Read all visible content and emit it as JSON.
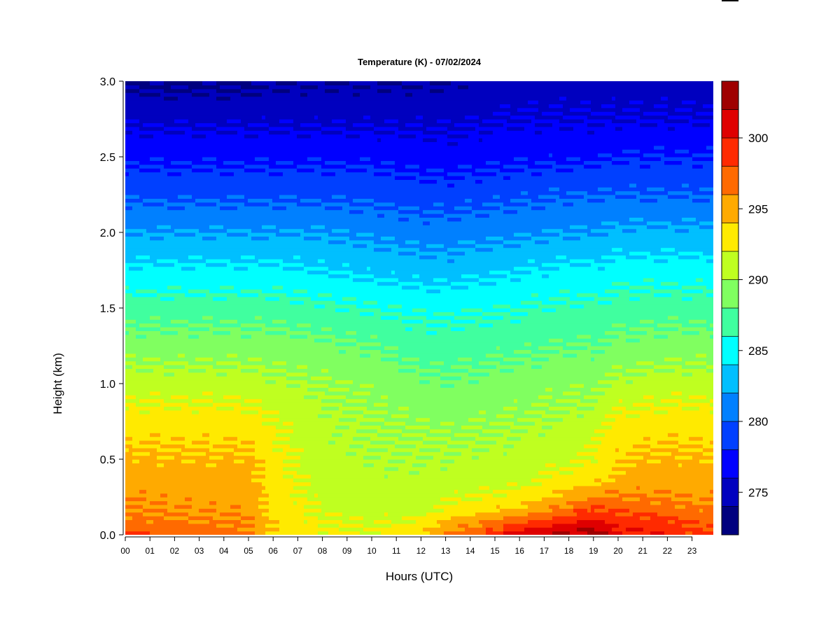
{
  "chart_data": {
    "type": "heatmap",
    "title": "Temperature (K) - 07/02/2024",
    "xlabel": "Hours (UTC)",
    "ylabel": "Height (km)",
    "xlim": [
      0,
      24
    ],
    "ylim": [
      0,
      3
    ],
    "x_ticks": [
      "00",
      "01",
      "02",
      "03",
      "04",
      "05",
      "06",
      "07",
      "08",
      "09",
      "10",
      "11",
      "12",
      "13",
      "14",
      "15",
      "16",
      "17",
      "18",
      "19",
      "20",
      "21",
      "22",
      "23"
    ],
    "y_ticks": [
      "0.0",
      "0.5",
      "1.0",
      "1.5",
      "2.0",
      "2.5",
      "3.0"
    ],
    "y_tick_values": [
      0,
      0.5,
      1.0,
      1.5,
      2.0,
      2.5,
      3.0
    ],
    "colorbar": {
      "levels": [
        272,
        274,
        276,
        278,
        280,
        282,
        284,
        286,
        288,
        290,
        292,
        294,
        296,
        298,
        300,
        302,
        304
      ],
      "colors": [
        "#00007f",
        "#0000bf",
        "#0000ff",
        "#0040ff",
        "#0080ff",
        "#00bfff",
        "#00ffff",
        "#40ff9f",
        "#80ff60",
        "#bfff20",
        "#ffea00",
        "#ffaa00",
        "#ff6a00",
        "#ff2a00",
        "#df0000",
        "#9f0000"
      ],
      "tick_labels": [
        "275",
        "280",
        "285",
        "290",
        "295",
        "300"
      ],
      "tick_values": [
        275,
        280,
        285,
        290,
        295,
        300
      ]
    },
    "height_levels_km": [
      0.0,
      0.1,
      0.2,
      0.35,
      0.5,
      0.75,
      1.0,
      1.25,
      1.5,
      1.75,
      2.0,
      2.25,
      2.5,
      2.75,
      3.0
    ],
    "hourly_temperature_profiles_K": {
      "00": [
        298.5,
        296.5,
        296.0,
        295.2,
        294.5,
        293.0,
        291.0,
        289.0,
        287.0,
        284.5,
        282.0,
        279.5,
        277.5,
        275.5,
        273.5
      ],
      "03": [
        297.0,
        296.0,
        295.5,
        295.0,
        294.3,
        293.0,
        291.0,
        289.0,
        287.0,
        284.5,
        282.0,
        279.5,
        277.5,
        275.5,
        273.5
      ],
      "05": [
        296.5,
        296.0,
        295.5,
        295.0,
        294.5,
        293.0,
        291.0,
        289.0,
        287.0,
        284.5,
        282.0,
        279.5,
        277.5,
        275.5,
        273.5
      ],
      "06": [
        294.0,
        293.5,
        293.3,
        293.0,
        292.8,
        292.0,
        290.5,
        289.0,
        287.0,
        284.5,
        282.0,
        279.5,
        277.5,
        275.5,
        274.0
      ],
      "08": [
        292.5,
        292.0,
        291.5,
        291.0,
        290.8,
        290.5,
        290.0,
        288.5,
        286.5,
        284.0,
        282.0,
        279.5,
        277.5,
        275.5,
        274.0
      ],
      "10": [
        292.0,
        291.5,
        291.0,
        290.7,
        290.3,
        290.0,
        289.5,
        288.0,
        286.0,
        283.5,
        281.5,
        279.5,
        277.5,
        275.5,
        274.0
      ],
      "12": [
        294.0,
        292.0,
        291.0,
        290.6,
        290.3,
        289.8,
        288.5,
        287.0,
        285.5,
        283.0,
        281.0,
        279.0,
        277.0,
        275.5,
        274.0
      ],
      "13": [
        296.0,
        294.0,
        292.0,
        290.8,
        290.4,
        289.5,
        288.3,
        287.0,
        285.5,
        283.0,
        281.0,
        279.0,
        277.0,
        275.5,
        274.0
      ],
      "16": [
        301.0,
        297.0,
        293.5,
        291.5,
        290.8,
        290.0,
        289.0,
        287.5,
        286.0,
        284.0,
        281.5,
        279.5,
        277.5,
        276.0,
        275.0
      ],
      "18": [
        302.5,
        299.0,
        296.0,
        293.0,
        291.5,
        290.5,
        289.5,
        288.0,
        286.5,
        284.5,
        282.0,
        280.0,
        277.5,
        276.0,
        275.0
      ],
      "19": [
        303.0,
        300.5,
        297.5,
        293.5,
        292.0,
        291.0,
        289.5,
        288.0,
        286.5,
        284.5,
        282.0,
        280.0,
        277.5,
        276.0,
        275.0
      ],
      "20": [
        300.5,
        299.0,
        297.0,
        294.8,
        294.0,
        292.5,
        290.5,
        288.5,
        287.0,
        285.0,
        282.5,
        280.0,
        278.0,
        276.0,
        275.0
      ],
      "22": [
        299.5,
        298.5,
        296.5,
        295.2,
        294.5,
        293.0,
        291.0,
        289.0,
        287.0,
        285.0,
        282.5,
        280.0,
        278.0,
        276.0,
        275.0
      ],
      "23": [
        298.5,
        297.5,
        296.0,
        295.0,
        294.3,
        293.0,
        291.0,
        289.0,
        287.0,
        285.0,
        282.5,
        280.0,
        278.0,
        276.0,
        275.0
      ]
    }
  }
}
